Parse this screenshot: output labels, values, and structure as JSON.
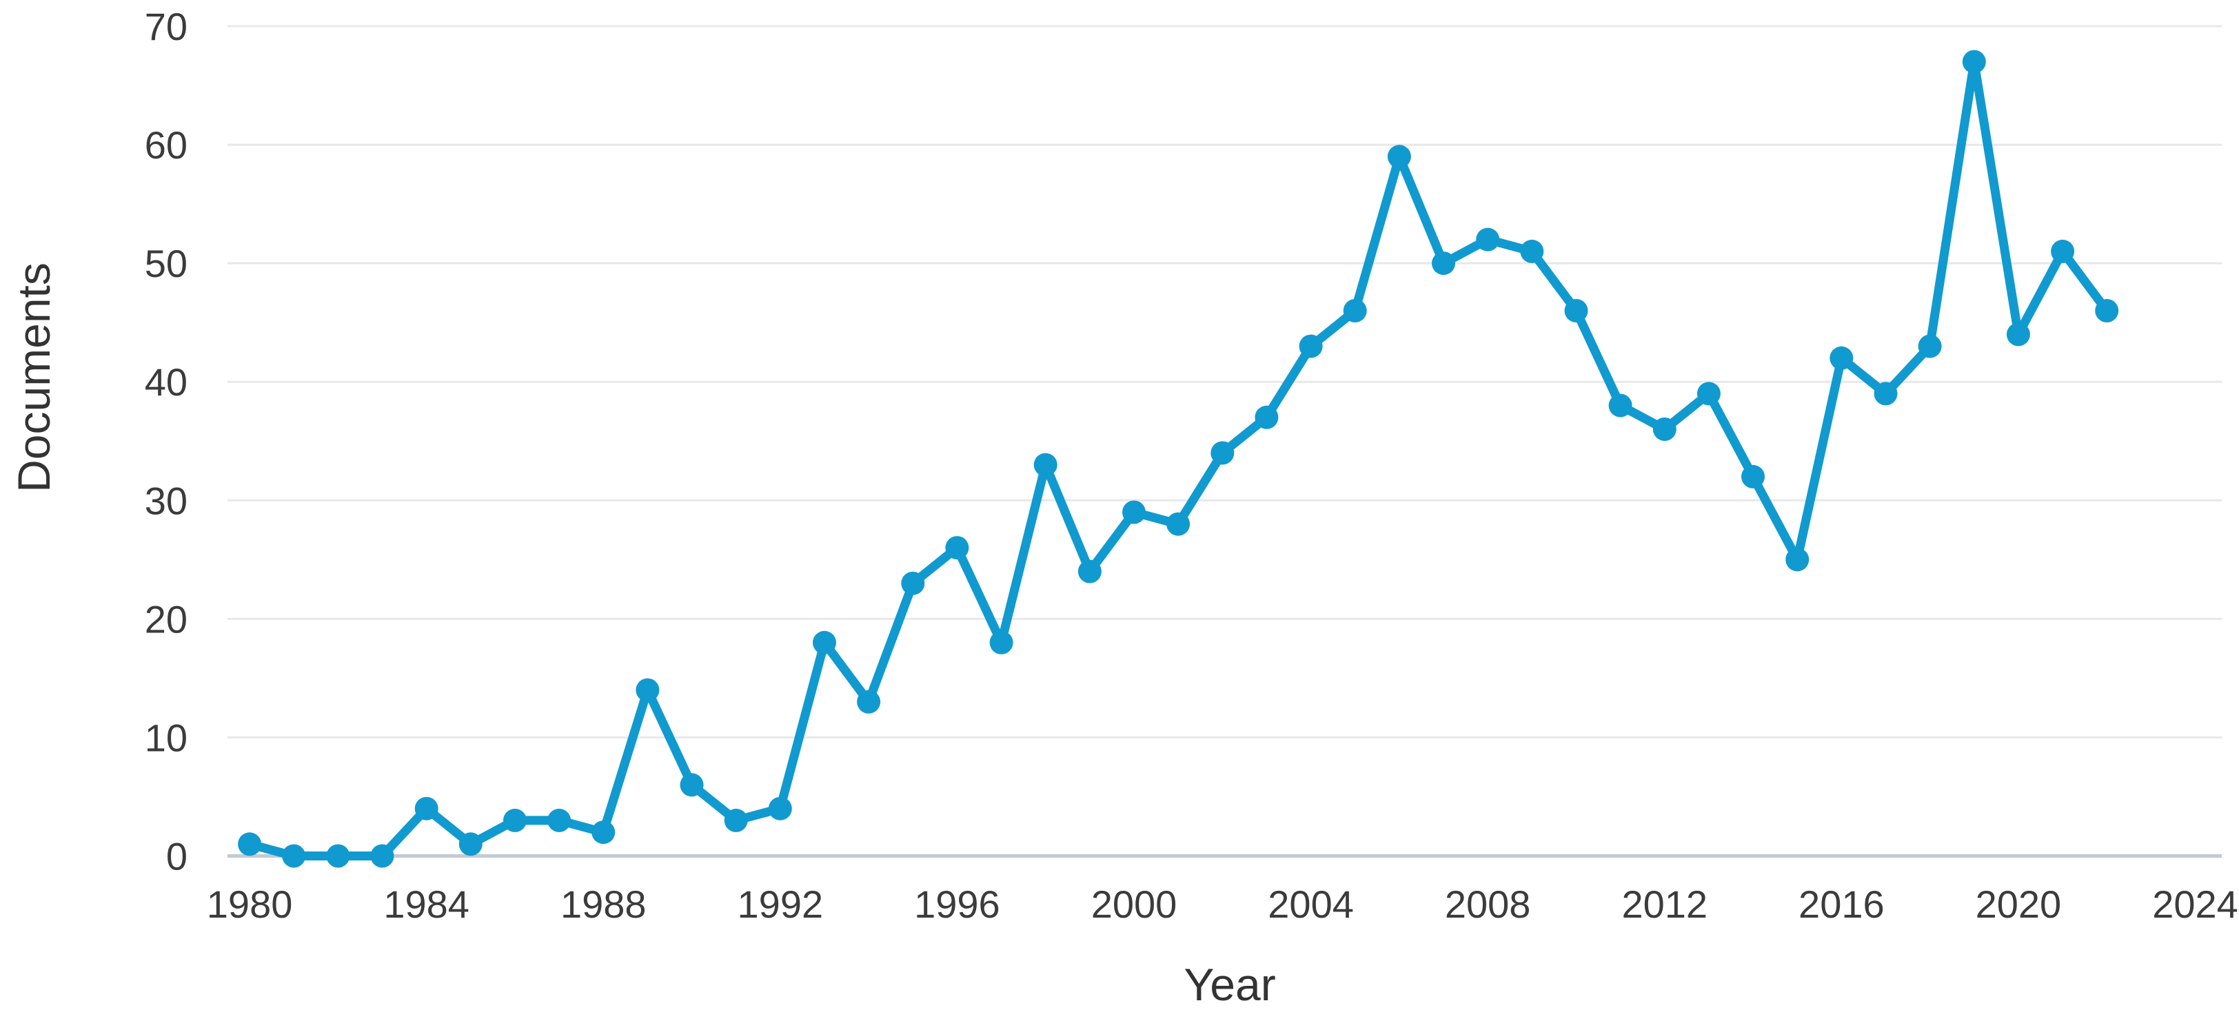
{
  "figure": {
    "background_color": "#ffffff"
  },
  "chart_data": {
    "type": "line",
    "title": "",
    "xlabel": "Year",
    "ylabel": "Documents",
    "series_name": "Documents",
    "x": [
      1980,
      1981,
      1982,
      1983,
      1984,
      1985,
      1986,
      1987,
      1988,
      1989,
      1990,
      1991,
      1992,
      1993,
      1994,
      1995,
      1996,
      1997,
      1998,
      1999,
      2000,
      2001,
      2002,
      2003,
      2004,
      2005,
      2006,
      2007,
      2008,
      2009,
      2010,
      2011,
      2012,
      2013,
      2014,
      2015,
      2016,
      2017,
      2018,
      2019,
      2020,
      2021,
      2022
    ],
    "values": [
      1,
      0,
      0,
      0,
      4,
      1,
      3,
      3,
      2,
      14,
      6,
      3,
      4,
      18,
      13,
      23,
      26,
      18,
      33,
      24,
      29,
      28,
      34,
      37,
      43,
      46,
      59,
      50,
      52,
      51,
      46,
      38,
      36,
      39,
      32,
      25,
      42,
      39,
      43,
      67,
      44,
      51,
      46
    ],
    "x_ticks": [
      1980,
      1984,
      1988,
      1992,
      1996,
      2000,
      2004,
      2008,
      2012,
      2016,
      2020,
      2024
    ],
    "y_ticks": [
      0,
      10,
      20,
      30,
      40,
      50,
      60,
      70
    ],
    "xlim": [
      1979.5,
      2024.6
    ],
    "ylim": [
      0,
      70
    ],
    "grid": "horizontal",
    "legend": "none",
    "marker": "circle",
    "colors": {
      "line": "#119ACF",
      "marker": "#119ACF",
      "gridline": "#e8e8e8",
      "axis_line": "#c2cad5",
      "text": "#3b3b3b"
    }
  }
}
